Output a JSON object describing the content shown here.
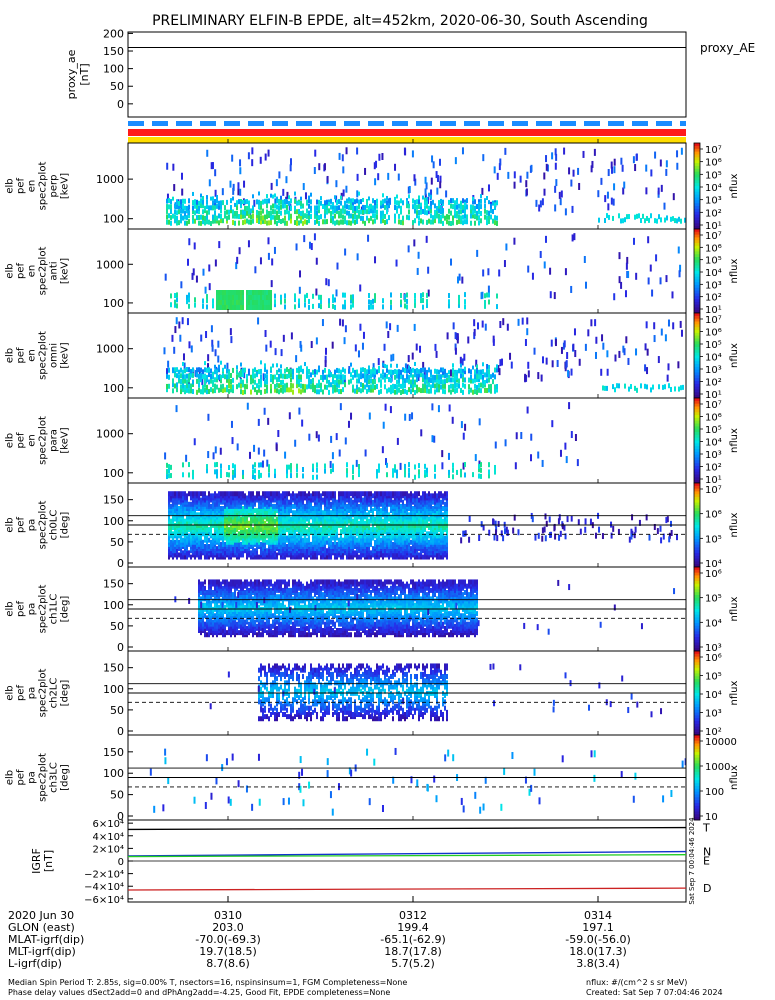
{
  "title": "PRELIMINARY ELFIN-B EPDE, alt=452km, 2020-06-30, South Ascending",
  "colors": {
    "flux_low": "#1a0066",
    "flux_mid": "#00e5ff",
    "flux_high": "#ffee00",
    "spec_core": "#33dd33",
    "igrf_T": "#000000",
    "igrf_N": "#1133cc",
    "igrf_E": "#22cc22",
    "igrf_D": "#cc2222",
    "band_red": "#ff1a1a",
    "band_yellow": "#ffdd00",
    "band_blue": "#1a8cff"
  },
  "chart_data": [
    {
      "type": "line",
      "id": "proxy_ae",
      "ylabel": "proxy_ae [nT]",
      "legend": "proxy_AE",
      "ylim": [
        -20,
        210
      ],
      "yticks": [
        "200",
        "150",
        "100",
        "50",
        "0"
      ],
      "value": 160
    },
    {
      "type": "heatmap",
      "id": "en_perp",
      "ylabel": "elb pef en spec2plot perp [keV]",
      "yscale": "log",
      "yticks": [
        "1000",
        "100"
      ],
      "cbar_label": "nflux",
      "cbar_ticks": [
        "10⁷",
        "10⁶",
        "10⁵",
        "10⁴",
        "10³",
        "10²",
        "10¹"
      ]
    },
    {
      "type": "heatmap",
      "id": "en_anti",
      "ylabel": "elb pef en spec2plot anti [keV]",
      "yscale": "log",
      "yticks": [
        "1000",
        "100"
      ],
      "cbar_label": "nflux",
      "cbar_ticks": [
        "10⁷",
        "10⁶",
        "10⁵",
        "10⁴",
        "10³",
        "10²",
        "10¹"
      ]
    },
    {
      "type": "heatmap",
      "id": "en_omni",
      "ylabel": "elb pef en spec2plot omni [keV]",
      "yscale": "log",
      "yticks": [
        "1000",
        "100"
      ],
      "cbar_label": "nflux",
      "cbar_ticks": [
        "10⁷",
        "10⁶",
        "10⁵",
        "10⁴",
        "10³",
        "10²",
        "10¹"
      ]
    },
    {
      "type": "heatmap",
      "id": "en_para",
      "ylabel": "elb pef en spec2plot para [keV]",
      "yscale": "log",
      "yticks": [
        "1000",
        "100"
      ],
      "cbar_label": "nflux",
      "cbar_ticks": [
        "10⁷",
        "10⁶",
        "10⁵",
        "10⁴",
        "10³",
        "10²",
        "10¹"
      ]
    },
    {
      "type": "heatmap",
      "id": "pa_ch0",
      "ylabel": "elb pef pa spec2plot ch0LC [deg]",
      "ylim": [
        0,
        180
      ],
      "yticks": [
        "150",
        "100",
        "50",
        "0"
      ],
      "cbar_label": "nflux",
      "cbar_ticks": [
        "10⁷",
        "10⁶",
        "10⁵",
        "10⁴"
      ]
    },
    {
      "type": "heatmap",
      "id": "pa_ch1",
      "ylabel": "elb pef pa spec2plot ch1LC [deg]",
      "ylim": [
        0,
        180
      ],
      "yticks": [
        "150",
        "100",
        "50",
        "0"
      ],
      "cbar_label": "nflux",
      "cbar_ticks": [
        "10⁶",
        "10⁵",
        "10⁴",
        "10³"
      ]
    },
    {
      "type": "heatmap",
      "id": "pa_ch2",
      "ylabel": "elb pef pa spec2plot ch2LC [deg]",
      "ylim": [
        0,
        180
      ],
      "yticks": [
        "150",
        "100",
        "50",
        "0"
      ],
      "cbar_label": "nflux",
      "cbar_ticks": [
        "10⁶",
        "10⁵",
        "10⁴",
        "10³",
        "10²"
      ]
    },
    {
      "type": "heatmap",
      "id": "pa_ch3",
      "ylabel": "elb pef pa spec2plot ch3LC [deg]",
      "ylim": [
        0,
        180
      ],
      "yticks": [
        "150",
        "100",
        "50",
        "0"
      ],
      "cbar_label": "nflux",
      "cbar_ticks": [
        "10000",
        "1000",
        "100",
        "10"
      ]
    },
    {
      "type": "line",
      "id": "igrf",
      "ylabel": "IGRF [nT]",
      "ylim": [
        -65000,
        65000
      ],
      "yticks": [
        "6×10⁴",
        "4×10⁴",
        "2×10⁴",
        "0",
        "−2×10⁴",
        "−4×10⁴",
        "−6×10⁴"
      ],
      "series": [
        {
          "name": "T",
          "values": [
            50000,
            53000
          ]
        },
        {
          "name": "N",
          "values": [
            8000,
            15000
          ]
        },
        {
          "name": "E",
          "values": [
            7000,
            10000
          ]
        },
        {
          "name": "D",
          "values": [
            -46000,
            -43000
          ]
        }
      ],
      "side_text": "Sat Sep  7 00:04:46 2024"
    }
  ],
  "xaxis": {
    "ticks": [
      "0310",
      "0312",
      "0314"
    ]
  },
  "footer": {
    "rows": [
      {
        "label": "2020 Jun 30",
        "v1": "0310",
        "v2": "0312",
        "v3": "0314"
      },
      {
        "label": "GLON (east)",
        "v1": "203.0",
        "v2": "199.4",
        "v3": "197.1"
      },
      {
        "label": "MLAT-igrf(dip)",
        "v1": "-70.0(-69.3)",
        "v2": "-65.1(-62.9)",
        "v3": "-59.0(-56.0)"
      },
      {
        "label": "MLT-igrf(dip)",
        "v1": "19.7(18.5)",
        "v2": "18.7(17.8)",
        "v3": "18.0(17.3)"
      },
      {
        "label": "L-igrf(dip)",
        "v1": "8.7(8.6)",
        "v2": "5.7(5.2)",
        "v3": "3.8(3.4)"
      }
    ],
    "note1": "Median Spin Period T: 2.85s, sig=0.00% T, nsectors=16, nspinsinsum=1, FGM Completeness=None",
    "note2": "Phase delay values dSect2add=0 and dPhAng2add=-4.25, Good Fit, EPDE completeness=None",
    "units": "nflux: #/(cm^2 s sr MeV)",
    "created": "Created: Sat Sep  7 07:04:46 2024"
  }
}
